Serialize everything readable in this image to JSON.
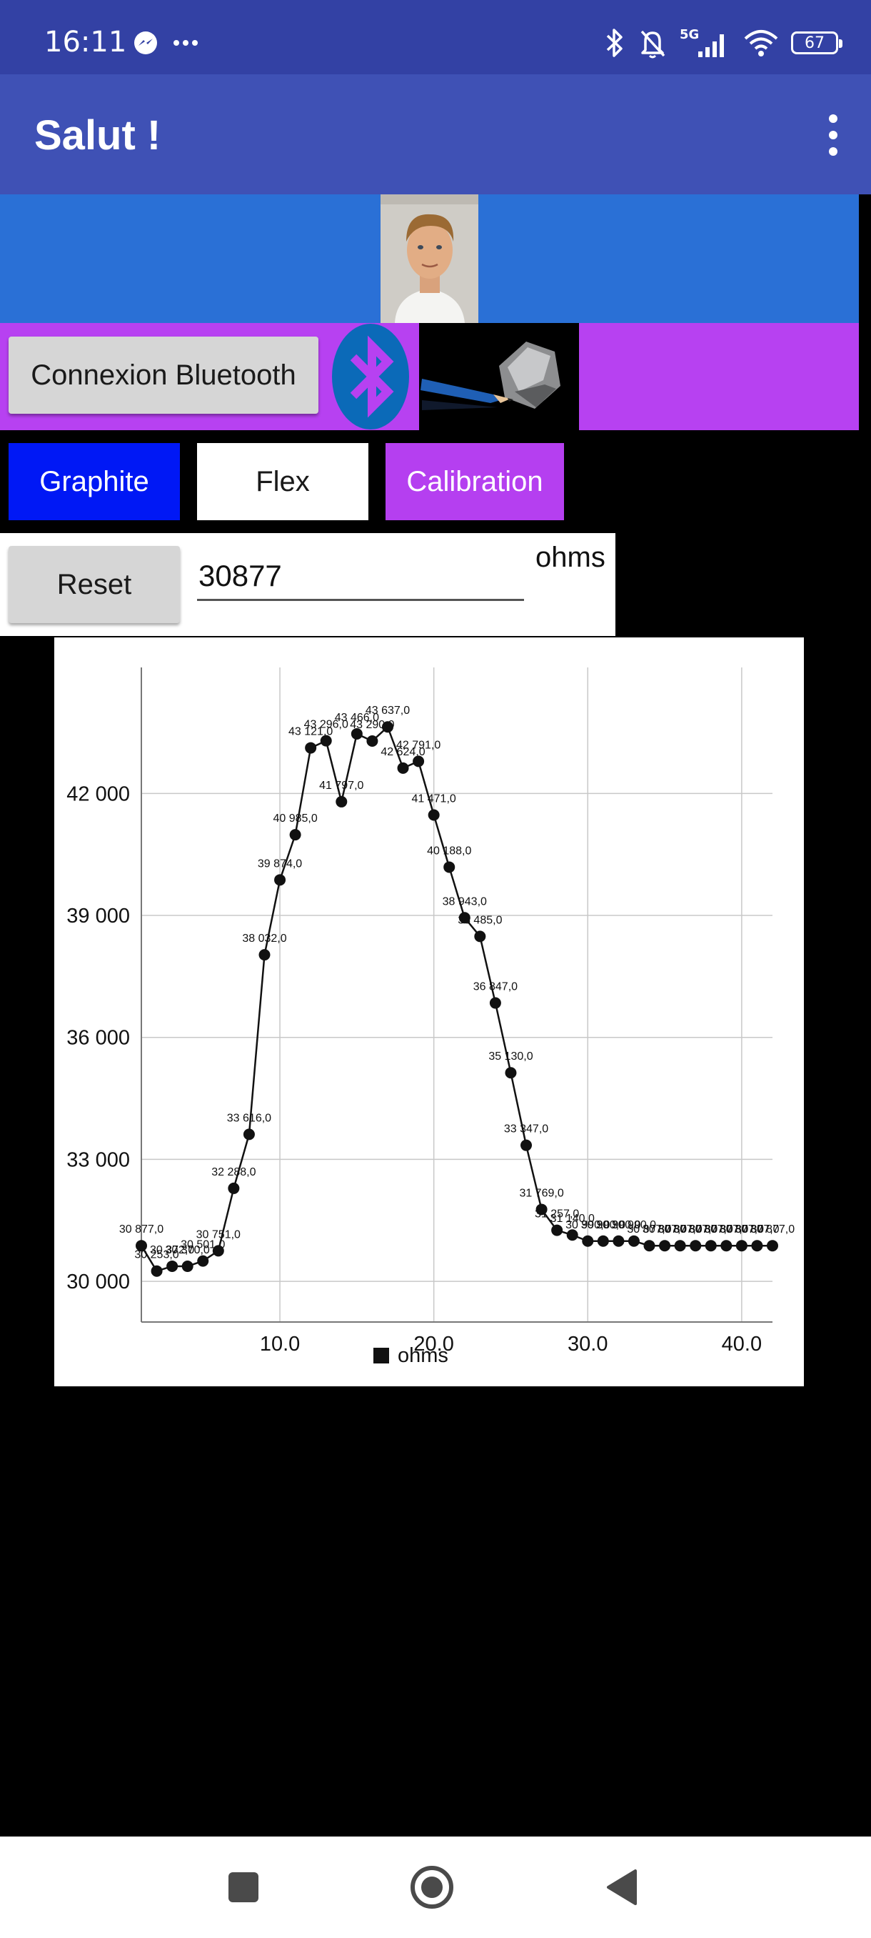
{
  "status_bar": {
    "time": "16:11",
    "left_icons": [
      "messenger-icon",
      "more-dots-icon"
    ],
    "right_icons": [
      "bluetooth-icon",
      "bell-muted-icon",
      "signal-5g-icon",
      "wifi-icon",
      "battery-icon"
    ],
    "network": "5G",
    "battery": "67"
  },
  "app_bar": {
    "title": "Salut !",
    "menu_icon": "overflow-menu-icon"
  },
  "toolbar": {
    "bluetooth_button": "Connexion Bluetooth",
    "graphite_button": "Graphite",
    "flex_button": "Flex",
    "calibration_button": "Calibration",
    "reset_button": "Reset"
  },
  "measurement": {
    "value": "30877",
    "unit": "ohms"
  },
  "colors": {
    "status_bar": "#3341a4",
    "app_bar": "#3f51b5",
    "banner": "#2a70d6",
    "purple": "#b741f1",
    "graphite_blue": "#0018f5"
  },
  "chart_data": {
    "type": "line",
    "x": [
      1,
      2,
      3,
      4,
      5,
      6,
      7,
      8,
      9,
      10,
      11,
      12,
      13,
      14,
      15,
      16,
      17,
      18,
      19,
      20,
      21,
      22,
      23,
      24,
      25,
      26,
      27,
      28,
      29,
      30,
      31,
      32,
      33,
      34,
      35,
      36,
      37,
      38,
      39,
      40,
      41,
      42
    ],
    "series": [
      {
        "name": "ohms",
        "values": [
          30877,
          30253,
          30372,
          30370,
          30501,
          30751,
          32288,
          33616,
          38032,
          39874,
          40985,
          43121,
          43296,
          41797,
          43466,
          43290,
          43637,
          42624,
          42791,
          41471,
          40188,
          38943,
          38485,
          36847,
          35130,
          33347,
          31769,
          31257,
          31140,
          30990,
          30990,
          30990,
          30990,
          30877,
          30877,
          30877,
          30877,
          30877,
          30877,
          30877,
          30877,
          30877
        ],
        "labels": [
          "30 877,0",
          "30 253,0",
          "30 372,0",
          "30 370,0",
          "30 501,0",
          "30 751,0",
          "32 288,0",
          "33 616,0",
          "38 032,0",
          "39 874,0",
          "40 985,0",
          "43 121,0",
          "43 296,0",
          "41 797,0",
          "43 466,0",
          "43 290,0",
          "43 637,0",
          "42 624,0",
          "42 791,0",
          "41 471,0",
          "40 188,0",
          "38 943,0",
          "38 485,0",
          "36 847,0",
          "35 130,0",
          "33 347,0",
          "31 769,0",
          "31 257,0",
          "31 140,0",
          "30 990,0",
          "30 990,0",
          "30 990,0",
          "30 990,0",
          "30 877,0",
          "30 877,0",
          "30 877,0",
          "30 877,0",
          "30 877,0",
          "30 877,0",
          "30 877,0",
          "30 877,0",
          "30 877,0"
        ]
      }
    ],
    "x_ticks": [
      "10.0",
      "20.0",
      "30.0",
      "40.0"
    ],
    "x_tick_values": [
      10,
      20,
      30,
      40
    ],
    "y_ticks": [
      "30 000",
      "33 000",
      "36 000",
      "39 000",
      "42 000"
    ],
    "y_tick_values": [
      30000,
      33000,
      36000,
      39000,
      42000
    ],
    "xlim": [
      1,
      42
    ],
    "ylim": [
      29000,
      45100
    ],
    "grid": true,
    "legend": "bottom-center",
    "legend_label": "ohms"
  },
  "nav_bar": {
    "icons": [
      "recents-square-icon",
      "home-circle-icon",
      "back-triangle-icon"
    ]
  }
}
